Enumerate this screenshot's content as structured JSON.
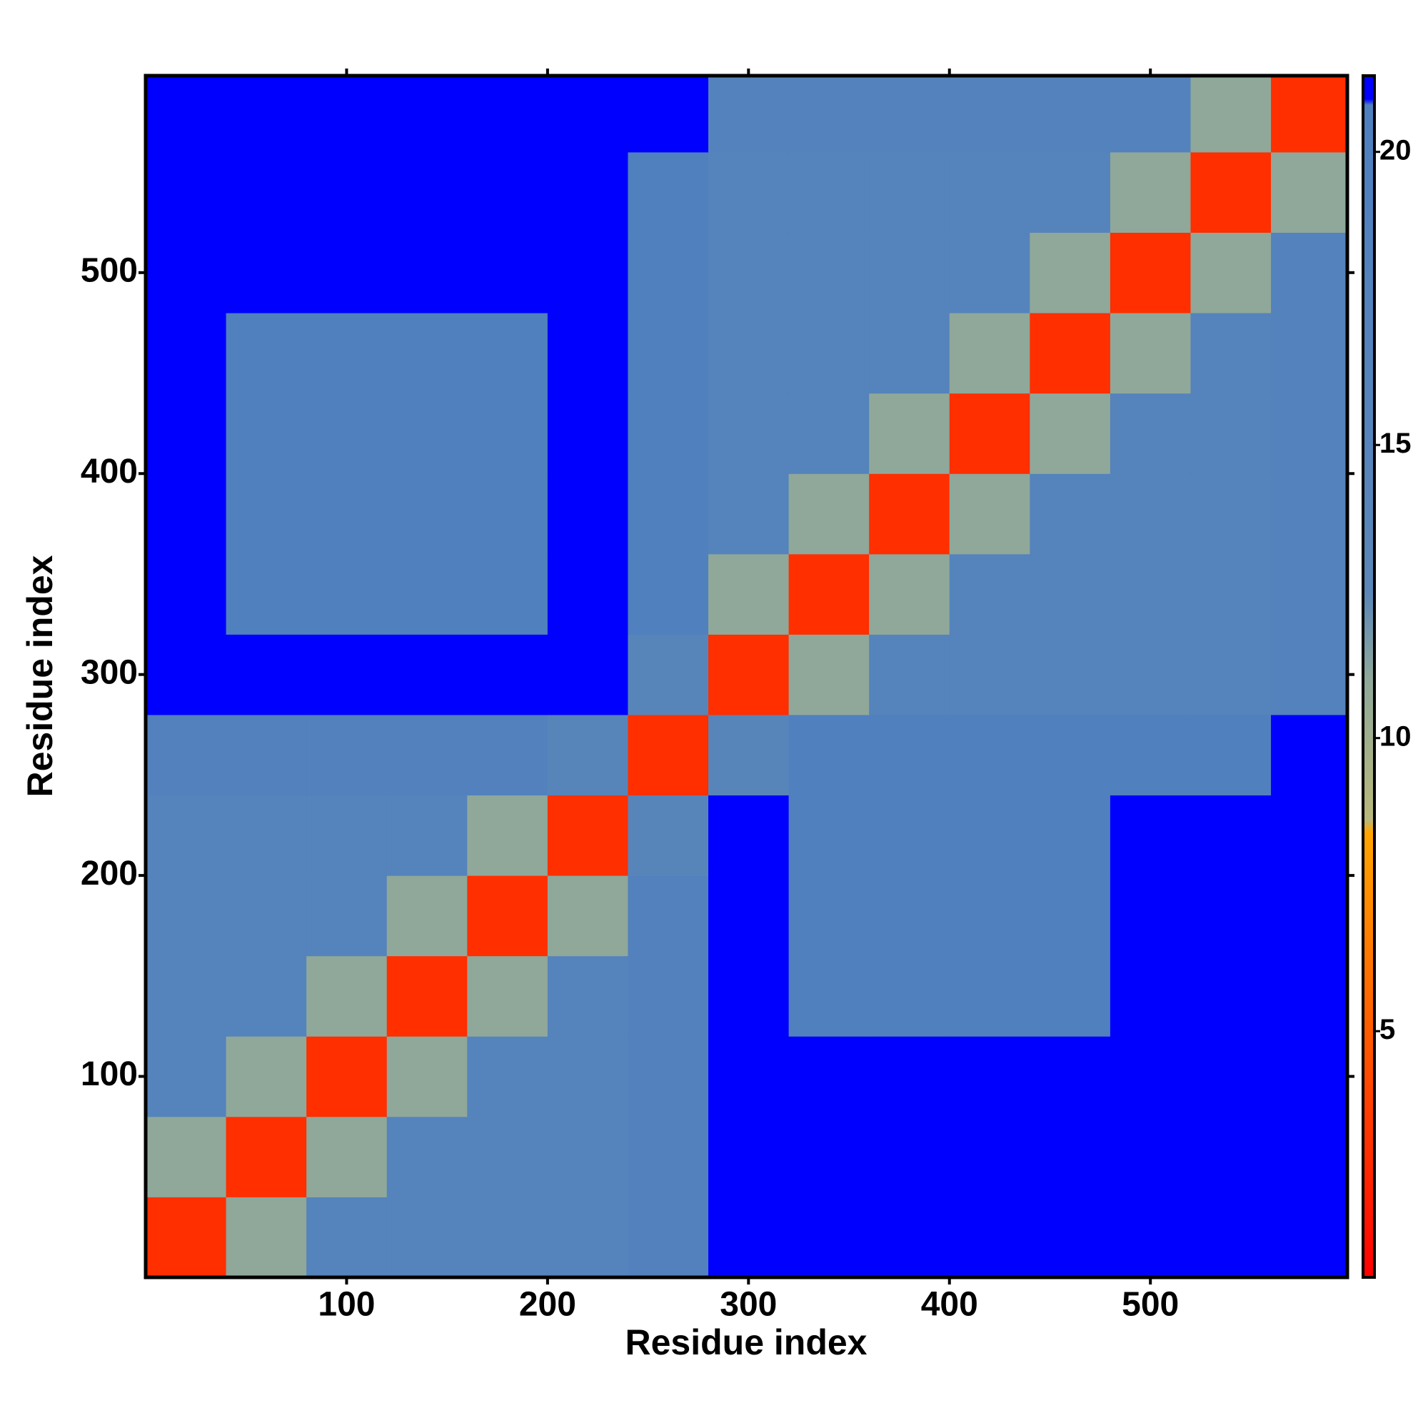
{
  "chart_data": {
    "type": "heatmap",
    "xlabel": "Residue index",
    "ylabel": "Residue index",
    "bins": [
      0,
      40,
      80,
      120,
      160,
      200,
      240,
      280,
      320,
      360,
      400,
      440,
      480,
      520,
      560,
      598
    ],
    "values": [
      [
        3,
        11,
        16,
        16,
        16,
        16,
        18,
        21,
        21,
        21,
        21,
        21,
        21,
        21,
        21
      ],
      [
        11,
        3,
        11,
        16,
        16,
        16,
        18,
        21,
        21,
        21,
        21,
        21,
        21,
        21,
        21
      ],
      [
        16,
        11,
        3,
        11,
        16,
        16,
        18,
        21,
        21,
        21,
        21,
        21,
        21,
        21,
        21
      ],
      [
        16,
        16,
        11,
        3,
        11,
        16,
        18,
        21,
        20,
        20,
        20,
        20,
        21,
        21,
        21
      ],
      [
        16,
        16,
        16,
        11,
        3,
        11,
        18,
        21,
        20,
        20,
        20,
        20,
        21,
        21,
        21
      ],
      [
        16,
        16,
        16,
        16,
        11,
        3,
        14,
        21,
        20,
        20,
        20,
        20,
        21,
        21,
        21
      ],
      [
        18,
        18,
        18,
        18,
        18,
        14,
        3,
        14,
        20,
        20,
        20,
        20,
        20,
        20,
        21
      ],
      [
        21,
        21,
        21,
        21,
        21,
        21,
        14,
        3,
        11,
        16,
        16,
        16,
        16,
        16,
        17
      ],
      [
        21,
        20,
        20,
        20,
        20,
        21,
        20,
        11,
        3,
        11,
        16,
        16,
        16,
        16,
        17
      ],
      [
        21,
        20,
        20,
        20,
        20,
        21,
        20,
        16,
        11,
        3,
        11,
        16,
        16,
        16,
        17
      ],
      [
        21,
        20,
        20,
        20,
        20,
        21,
        20,
        16,
        16,
        11,
        3,
        11,
        16,
        16,
        17
      ],
      [
        21,
        20,
        20,
        20,
        20,
        21,
        20,
        16,
        16,
        16,
        11,
        3,
        11,
        16,
        17
      ],
      [
        21,
        21,
        21,
        21,
        21,
        21,
        20,
        16,
        16,
        16,
        16,
        11,
        3,
        11,
        17
      ],
      [
        21,
        21,
        21,
        21,
        21,
        21,
        20,
        16,
        16,
        16,
        16,
        16,
        11,
        3,
        11
      ],
      [
        21,
        21,
        21,
        21,
        21,
        21,
        21,
        17,
        17,
        17,
        17,
        17,
        17,
        11,
        3
      ]
    ],
    "xlim": [
      0,
      598
    ],
    "ylim": [
      0,
      598
    ],
    "xticks": [
      100,
      200,
      300,
      400,
      500
    ],
    "yticks": [
      100,
      200,
      300,
      400,
      500
    ],
    "clim": [
      0.8,
      21.3
    ],
    "cticks": [
      5,
      10,
      15,
      20
    ],
    "colorscale": [
      {
        "value": 0.8,
        "color": "#ff0000"
      },
      {
        "value": 4,
        "color": "#ff4500"
      },
      {
        "value": 8.4,
        "color": "#ffa500"
      },
      {
        "value": 8.6,
        "color": "#b8b87a"
      },
      {
        "value": 11,
        "color": "#8fa89a"
      },
      {
        "value": 12.5,
        "color": "#5a86b8"
      },
      {
        "value": 20.8,
        "color": "#4f7fbf"
      },
      {
        "value": 20.9,
        "color": "#0000ff"
      },
      {
        "value": 21.3,
        "color": "#0000ff"
      }
    ]
  }
}
